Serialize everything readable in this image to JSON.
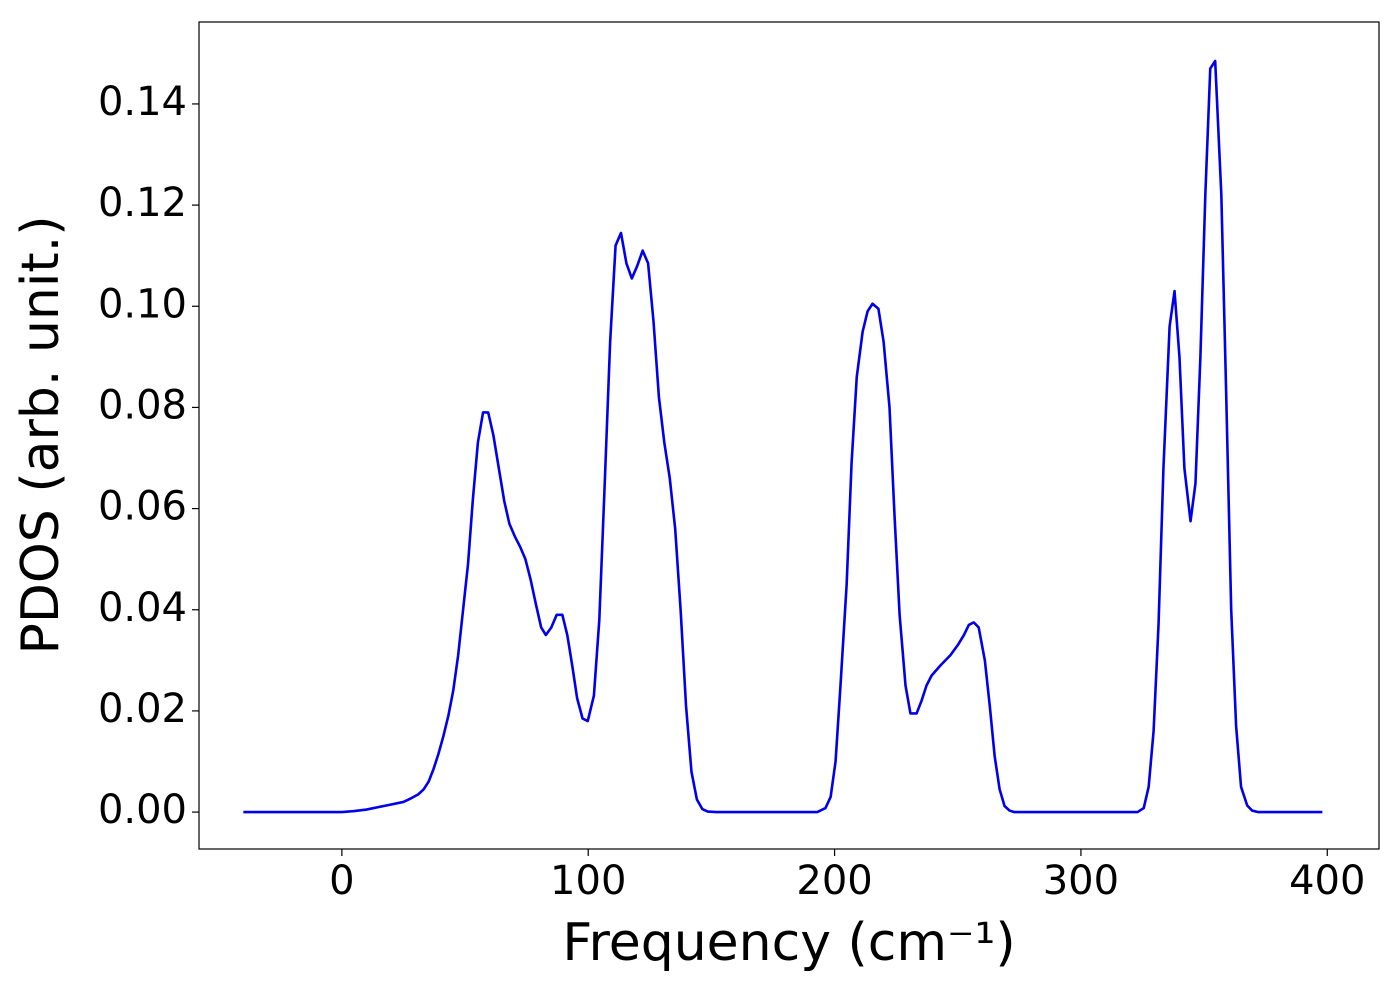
{
  "chart_data": {
    "type": "line",
    "xlabel": "Frequency (cm⁻¹)",
    "ylabel": "PDOS (arb. unit.)",
    "xlim": [
      -58,
      421
    ],
    "ylim": [
      -0.0073,
      0.1562
    ],
    "xticks": [
      0,
      100,
      200,
      300,
      400
    ],
    "yticks": [
      {
        "value": 0,
        "label": "0.00"
      },
      {
        "value": 0.02,
        "label": "0.02"
      },
      {
        "value": 0.04,
        "label": "0.04"
      },
      {
        "value": 0.06,
        "label": "0.06"
      },
      {
        "value": 0.08,
        "label": "0.08"
      },
      {
        "value": 0.1,
        "label": "0.10"
      },
      {
        "value": 0.12,
        "label": "0.12"
      },
      {
        "value": 0.14,
        "label": "0.14"
      }
    ],
    "x": [
      -40,
      -20,
      0,
      5,
      10,
      15,
      20,
      25,
      28,
      31,
      33.2,
      35.2,
      37.2,
      39.2,
      41.2,
      43.2,
      45.2,
      47.2,
      49.2,
      51.2,
      53.2,
      55.2,
      57.3,
      59.4,
      61.5,
      63.7,
      65.9,
      68,
      70.2,
      72.3,
      74.5,
      76.6,
      78.8,
      80.9,
      82.8,
      85,
      87.2,
      89.5,
      91.5,
      93.5,
      95.5,
      97.7,
      99.8,
      102.3,
      104.5,
      106.7,
      108.9,
      111.1,
      113.3,
      115.5,
      117.7,
      119.9,
      122.1,
      124.3,
      126.5,
      128.7,
      130.9,
      133.1,
      135.3,
      137.5,
      139.7,
      141.9,
      144.1,
      146.3,
      148.5,
      152,
      175,
      193,
      196.3,
      198.4,
      200.4,
      202.4,
      204.9,
      206.9,
      209,
      211.4,
      213.4,
      215.4,
      217.8,
      219.9,
      222.3,
      224.3,
      226.4,
      228.8,
      230.8,
      233.3,
      235.3,
      237.3,
      239.4,
      243,
      247,
      250,
      252.5,
      254.5,
      256.5,
      258.5,
      261,
      263,
      265,
      267,
      269,
      271,
      273,
      300,
      323,
      325.5,
      327.5,
      329.5,
      331.5,
      333.5,
      336,
      338,
      340,
      342,
      344.5,
      346.5,
      348.5,
      350.5,
      352.5,
      354.5,
      357,
      359,
      361,
      363,
      365,
      367.5,
      369.5,
      372,
      398
    ],
    "series": [
      {
        "name": "PDOS",
        "color": "#0000ee",
        "values": [
          0,
          0,
          0,
          0.0002,
          0.0005,
          0.001,
          0.0015,
          0.002,
          0.0027,
          0.0035,
          0.0045,
          0.006,
          0.0085,
          0.0115,
          0.015,
          0.019,
          0.024,
          0.031,
          0.04,
          0.049,
          0.062,
          0.073,
          0.079,
          0.079,
          0.0745,
          0.068,
          0.0615,
          0.057,
          0.0545,
          0.0525,
          0.05,
          0.046,
          0.041,
          0.0365,
          0.035,
          0.0365,
          0.039,
          0.039,
          0.035,
          0.029,
          0.0225,
          0.0185,
          0.018,
          0.023,
          0.038,
          0.065,
          0.093,
          0.112,
          0.1145,
          0.1085,
          0.1055,
          0.108,
          0.111,
          0.1085,
          0.097,
          0.082,
          0.073,
          0.066,
          0.056,
          0.04,
          0.021,
          0.008,
          0.0025,
          0.0006,
          0.0001,
          0,
          0,
          0,
          0.0008,
          0.003,
          0.01,
          0.025,
          0.045,
          0.069,
          0.086,
          0.095,
          0.099,
          0.1005,
          0.0995,
          0.093,
          0.08,
          0.059,
          0.039,
          0.025,
          0.0195,
          0.0195,
          0.022,
          0.025,
          0.027,
          0.029,
          0.031,
          0.033,
          0.035,
          0.037,
          0.0375,
          0.0365,
          0.03,
          0.021,
          0.011,
          0.0045,
          0.0012,
          0.0003,
          0,
          0,
          0,
          0.0008,
          0.005,
          0.016,
          0.037,
          0.068,
          0.096,
          0.103,
          0.09,
          0.068,
          0.0575,
          0.065,
          0.09,
          0.122,
          0.147,
          0.1485,
          0.122,
          0.082,
          0.04,
          0.017,
          0.005,
          0.0013,
          0.0003,
          0,
          0
        ]
      }
    ]
  }
}
